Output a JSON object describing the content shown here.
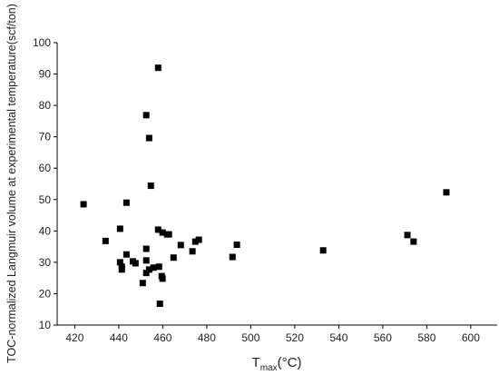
{
  "chart_data": {
    "type": "scatter",
    "xlabel": {
      "main": "T",
      "sub": "max",
      "unit": "(°C)"
    },
    "ylabel": "TOC-normalized Langmuir volume at experimental temperature(scf/ton)",
    "color": "#000000",
    "x": [
      424,
      434,
      440.6,
      440.6,
      441.4,
      441.4,
      443.5,
      443.5,
      446.4,
      447.6,
      450.9,
      452.5,
      452.5,
      452.5,
      452.5,
      453.8,
      453.8,
      454.6,
      455.8,
      457.9,
      457.9,
      458.3,
      458.7,
      459.5,
      459.9,
      459.9,
      462,
      462.8,
      464.9,
      468.2,
      473.5,
      474.8,
      476.4,
      491.7,
      493.7,
      532.9,
      571.2,
      574,
      588.9
    ],
    "y": [
      48.5,
      36.8,
      40.7,
      30,
      28.6,
      27.7,
      49,
      32.5,
      30.3,
      29.7,
      23.4,
      76.9,
      34.3,
      30.6,
      26.6,
      69.6,
      27.7,
      54.4,
      28.3,
      92,
      40.4,
      28.6,
      16.8,
      25.6,
      24.8,
      39.5,
      38.9,
      38.9,
      31.5,
      35.5,
      33.5,
      36.6,
      37.2,
      31.7,
      35.6,
      33.8,
      38.7,
      36.6,
      52.3
    ],
    "xlim": [
      412,
      612
    ],
    "ylim": [
      10,
      100
    ],
    "xticks": [
      420,
      440,
      460,
      480,
      500,
      520,
      540,
      560,
      580,
      600
    ],
    "yticks": [
      10,
      20,
      30,
      40,
      50,
      60,
      70,
      80,
      90,
      100
    ]
  }
}
